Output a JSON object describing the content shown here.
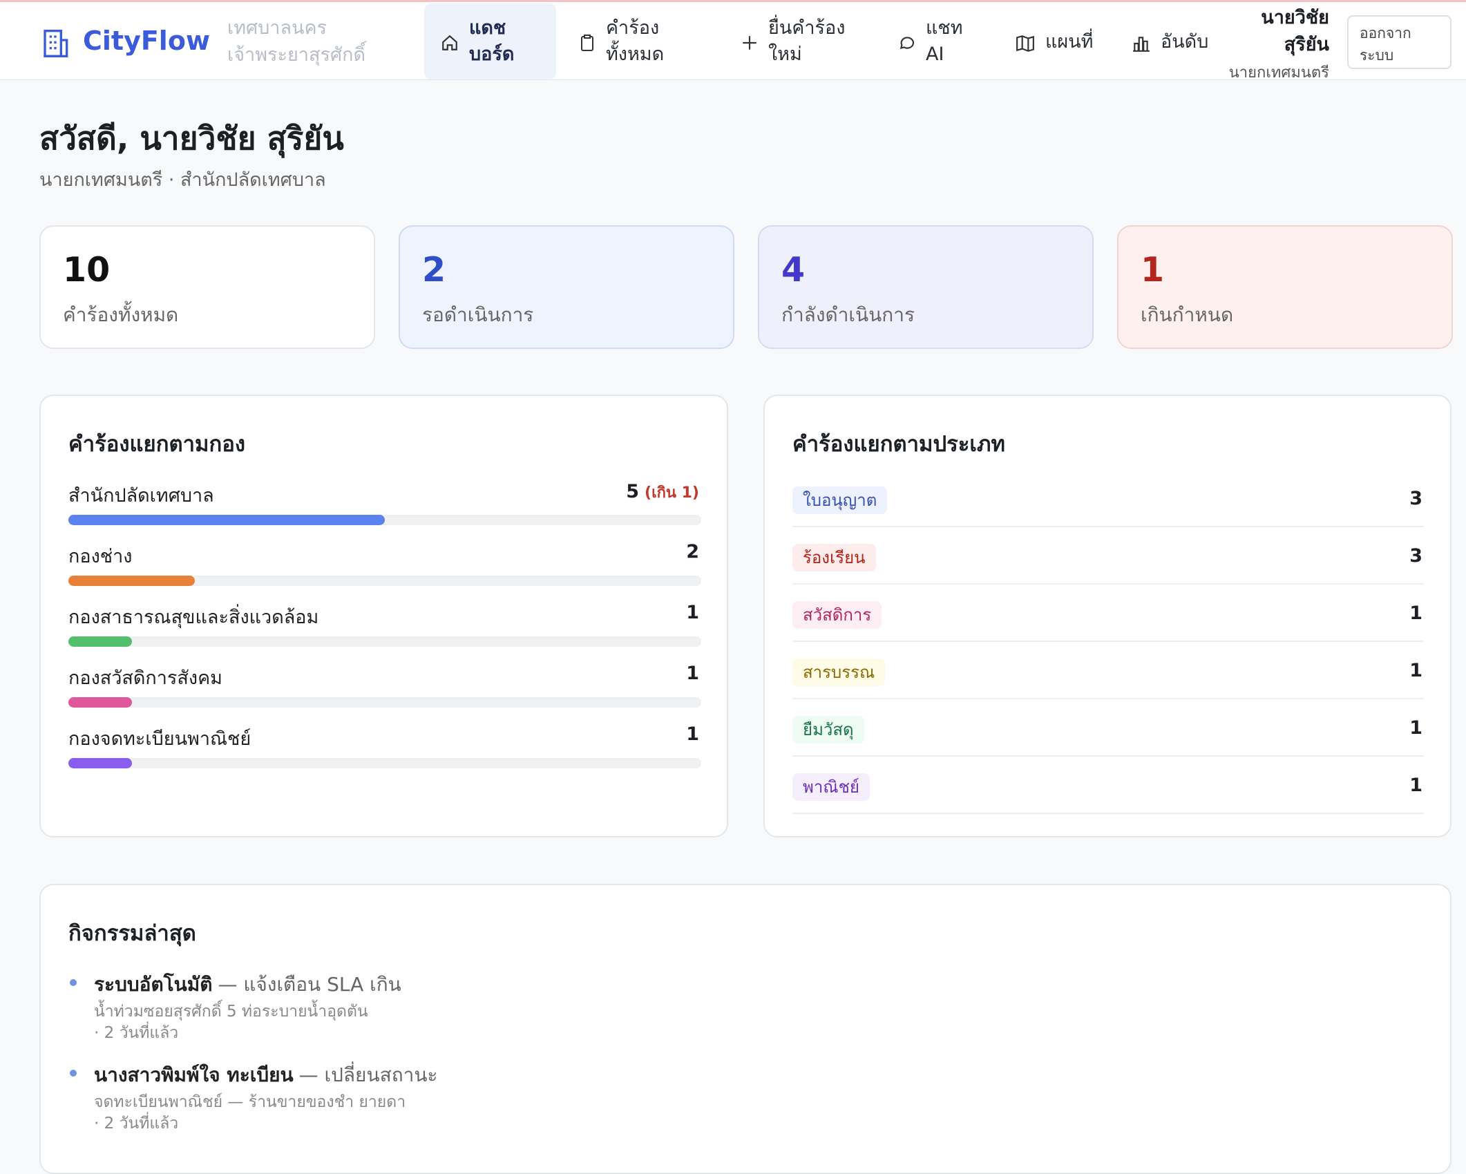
{
  "nav": {
    "brand": "CityFlow",
    "org": "เทศบาลนครเจ้าพระยาสุรศักดิ์",
    "items": [
      "แดชบอร์ด",
      "คำร้องทั้งหมด",
      "ยื่นคำร้องใหม่",
      "แชท AI",
      "แผนที่",
      "อันดับ"
    ],
    "user_name": "นายวิชัย สุริยัน",
    "user_role": "นายกเทศมนตรี",
    "logout": "ออกจากระบบ"
  },
  "greeting": {
    "title": "สวัสดี, นายวิชัย สุริยัน",
    "subtitle": "นายกเทศมนตรี · สำนักปลัดเทศบาล"
  },
  "stats": [
    {
      "value": 10,
      "label": "คำร้องทั้งหมด"
    },
    {
      "value": 2,
      "label": "รอดำเนินการ"
    },
    {
      "value": 4,
      "label": "กำลังดำเนินการ"
    },
    {
      "value": 1,
      "label": "เกินกำหนด"
    }
  ],
  "by_department": {
    "title": "คำร้องแยกตามกอง",
    "rows": [
      {
        "name": "สำนักปลัดเทศบาล",
        "value": 5,
        "overdue_label": "(เกิน 1)",
        "color": "#5b82ef"
      },
      {
        "name": "กองช่าง",
        "value": 2,
        "color": "#e8803a"
      },
      {
        "name": "กองสาธารณสุขและสิ่งแวดล้อม",
        "value": 1,
        "color": "#52c06a"
      },
      {
        "name": "กองสวัสดิการสังคม",
        "value": 1,
        "color": "#e0589a"
      },
      {
        "name": "กองจดทะเบียนพาณิชย์",
        "value": 1,
        "color": "#8b5cf0"
      }
    ]
  },
  "by_type": {
    "title": "คำร้องแยกตามประเภท",
    "rows": [
      {
        "name": "ใบอนุญาต",
        "value": 3
      },
      {
        "name": "ร้องเรียน",
        "value": 3
      },
      {
        "name": "สวัสดิการ",
        "value": 1
      },
      {
        "name": "สารบรรณ",
        "value": 1
      },
      {
        "name": "ยืมวัสดุ",
        "value": 1
      },
      {
        "name": "พาณิชย์",
        "value": 1
      }
    ]
  },
  "activity": {
    "title": "กิจกรรมล่าสุด",
    "items": [
      {
        "actor": "ระบบอัตโนมัติ",
        "action": "— แจ้งเตือน SLA เกิน",
        "detail": "น้ำท่วมซอยสุรศักดิ์ 5 ท่อระบายน้ำอุดตัน",
        "time": "· 2 วันที่แล้ว"
      },
      {
        "actor": "นางสาวพิมพ์ใจ ทะเบียน",
        "action": "— เปลี่ยนสถานะ",
        "detail": "จดทะเบียนพาณิชย์ — ร้านขายของชำ ยายดา",
        "time": "· 2 วันที่แล้ว"
      }
    ]
  }
}
